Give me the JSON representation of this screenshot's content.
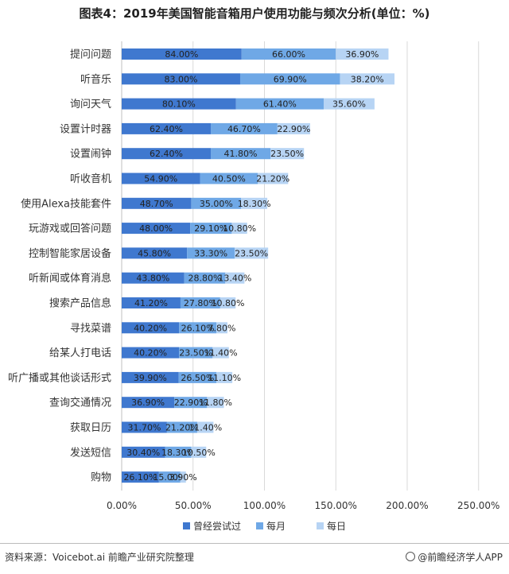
{
  "chart_data": {
    "type": "bar",
    "stacked": true,
    "orientation": "horizontal",
    "title": "图表4：2019年美国智能音箱用户使用功能与频次分析(单位：%)",
    "categories": [
      "提问问题",
      "听音乐",
      "询问天气",
      "设置计时器",
      "设置闹钟",
      "听收音机",
      "使用Alexa技能套件",
      "玩游戏或回答问题",
      "控制智能家居设备",
      "听新闻或体育消息",
      "搜索产品信息",
      "寻找菜谱",
      "给某人打电话",
      "听广播或其他谈话形式",
      "查询交通情况",
      "获取日历",
      "发送短信",
      "购物"
    ],
    "series": [
      {
        "name": "曾经尝试过",
        "color": "#3f78cf",
        "values": [
          84.0,
          83.0,
          80.1,
          62.4,
          62.4,
          54.9,
          48.7,
          48.0,
          45.8,
          43.8,
          41.2,
          40.2,
          40.2,
          39.9,
          36.9,
          31.7,
          30.4,
          26.1
        ],
        "labels": [
          "84.00%",
          "83.00%",
          "80.10%",
          "62.40%",
          "62.40%",
          "54.90%",
          "48.70%",
          "48.00%",
          "45.80%",
          "43.80%",
          "41.20%",
          "40.20%",
          "40.20%",
          "39.90%",
          "36.90%",
          "31.70%",
          "30.40%",
          "26.10%"
        ]
      },
      {
        "name": "每月",
        "color": "#6fa8e6",
        "values": [
          66.0,
          69.9,
          61.4,
          46.7,
          41.8,
          40.5,
          35.0,
          29.1,
          33.3,
          28.8,
          27.8,
          26.1,
          23.5,
          26.5,
          22.9,
          21.2,
          18.3,
          15.0
        ],
        "labels": [
          "66.00%",
          "69.90%",
          "61.40%",
          "46.70%",
          "41.80%",
          "40.50%",
          "35.00%",
          "29.10%",
          "33.30%",
          "28.80%",
          "27.80%",
          "26.10%",
          "23.50%",
          "26.50%",
          "22.90%",
          "21.20%",
          "18.30%",
          "15.00%"
        ]
      },
      {
        "name": "每日",
        "color": "#b7d4f4",
        "values": [
          36.9,
          38.2,
          35.6,
          22.9,
          23.5,
          21.2,
          18.3,
          10.8,
          23.5,
          13.4,
          10.8,
          7.8,
          11.4,
          11.1,
          11.8,
          11.4,
          10.5,
          3.9
        ],
        "labels": [
          "36.90%",
          "38.20%",
          "35.60%",
          "22.90%",
          "23.50%",
          "21.20%",
          "18.30%",
          "10.80%",
          "23.50%",
          "13.40%",
          "10.80%",
          "7.80%",
          "11.40%",
          "11.10%",
          "11.80%",
          "11.40%",
          "10.50%",
          "3.90%"
        ]
      }
    ],
    "xlim": [
      0,
      250
    ],
    "xticks": [
      0,
      50,
      100,
      150,
      200,
      250
    ],
    "xtick_labels": [
      "0.00%",
      "50.00%",
      "100.00%",
      "150.00%",
      "200.00%",
      "250.00%"
    ],
    "grid": "vertical",
    "legend_position": "bottom"
  },
  "footer": {
    "source": "资料来源：Voicebot.ai 前瞻产业研究院整理",
    "brand": "@前瞻经济学人APP"
  }
}
